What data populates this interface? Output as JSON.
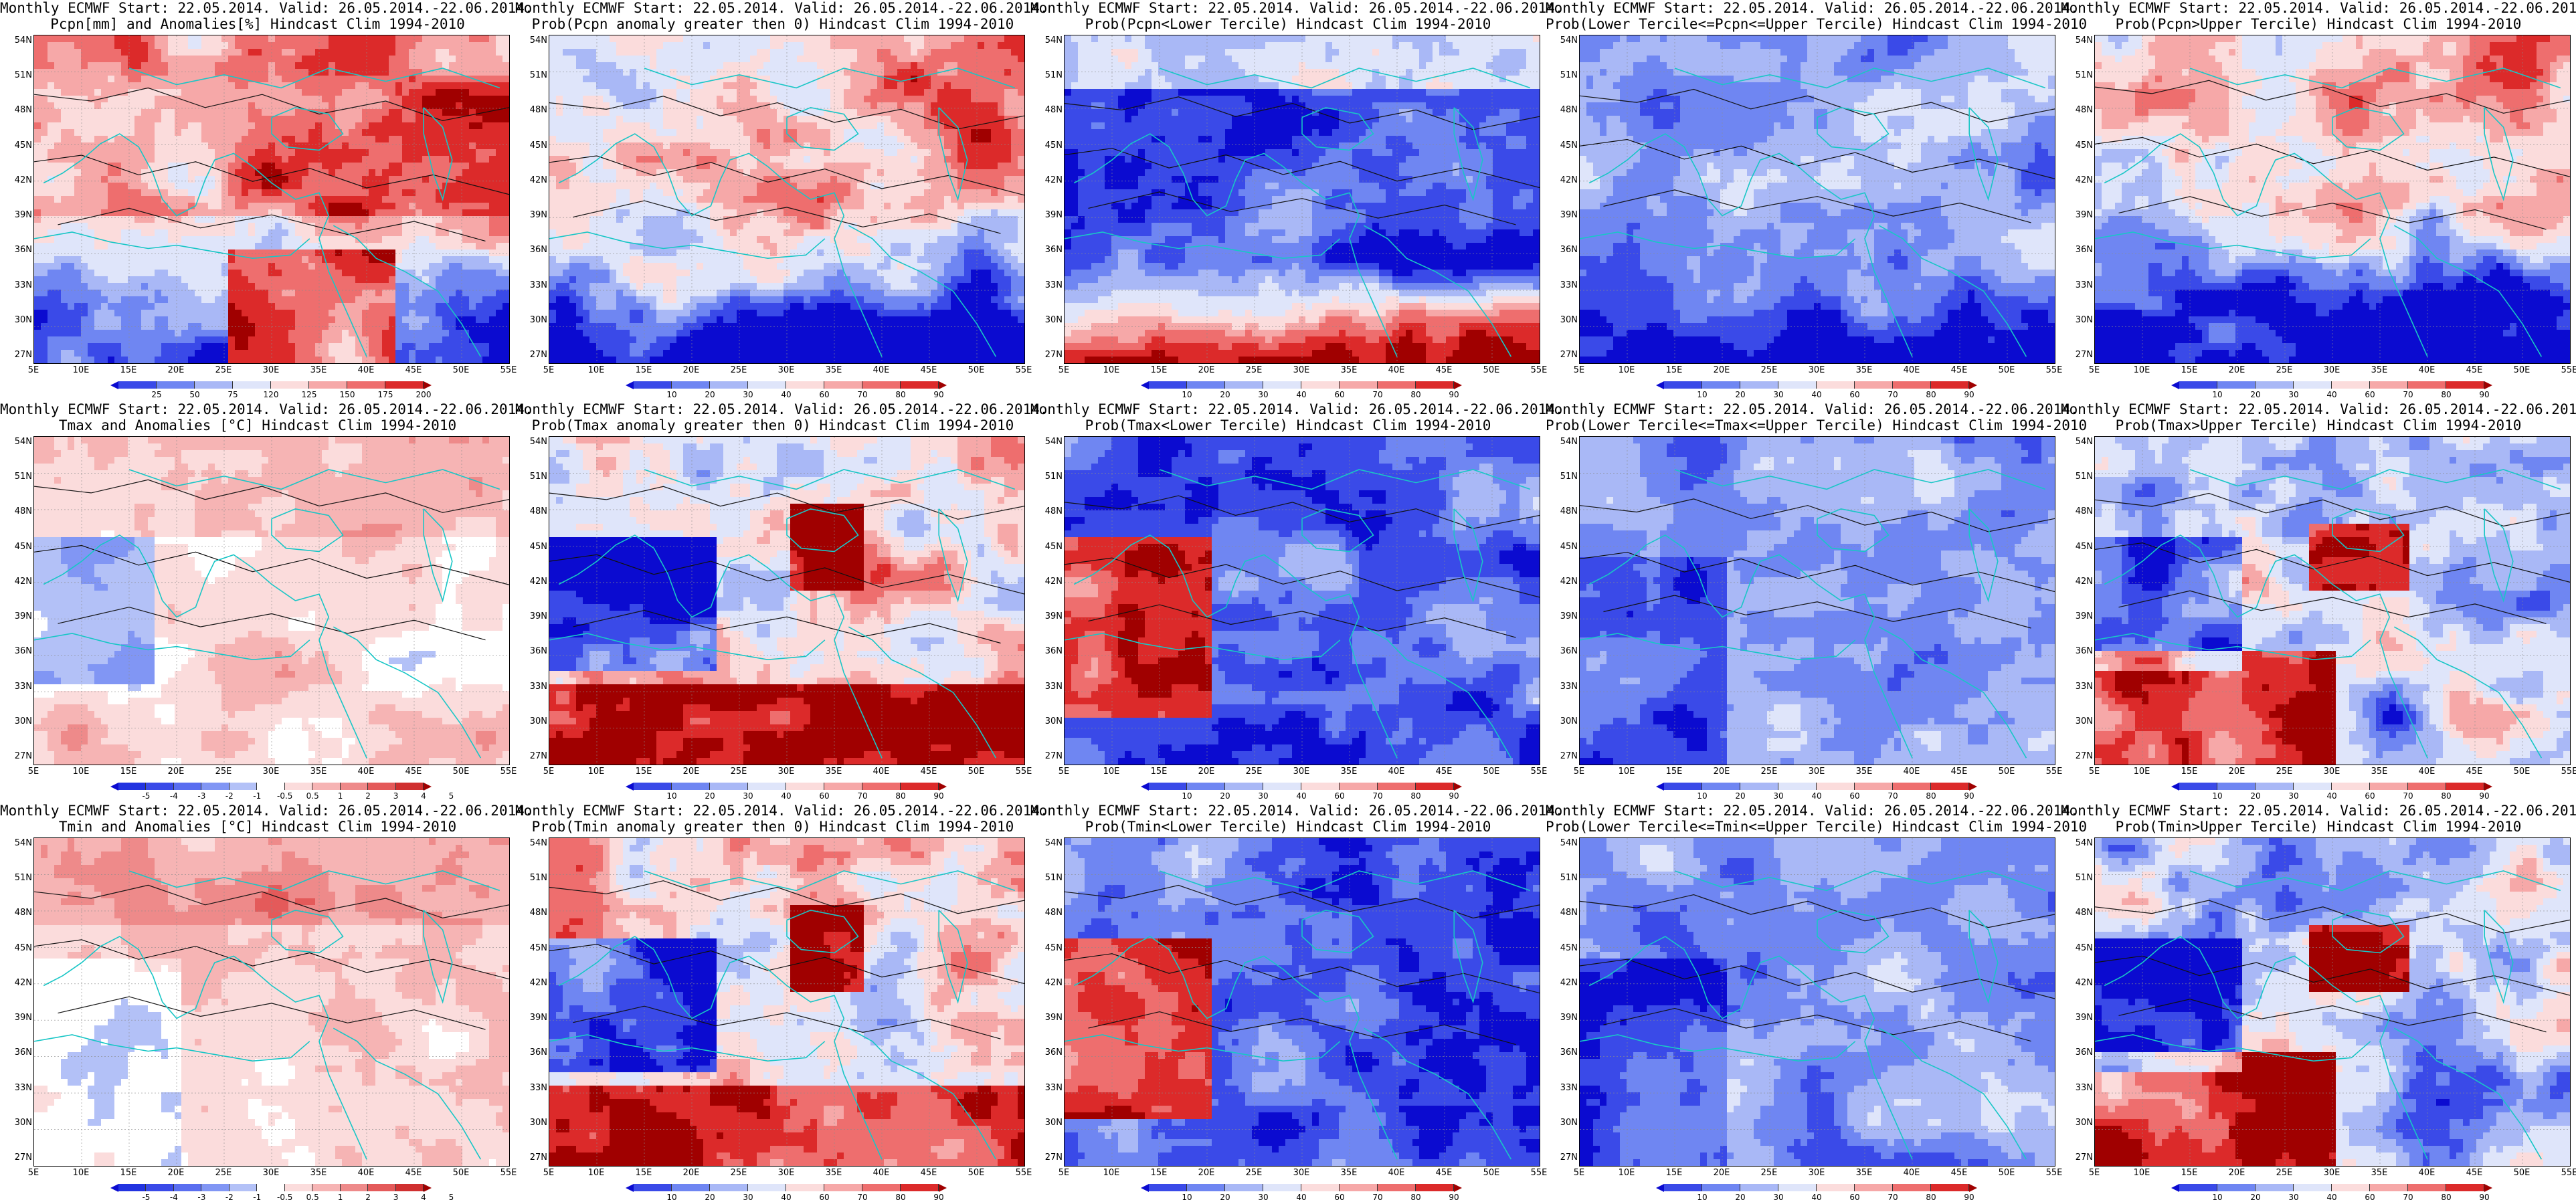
{
  "panels": [
    {
      "title1": "Monthly ECMWF Start: 22.05.2014. Valid: 26.05.2014.-22.06.2014.",
      "title2": "Pcpn[mm] and Anomalies[%] Hindcast Clim 1994-2010",
      "scale": "anom_pcpn",
      "pattern": "pcpn_anom"
    },
    {
      "title1": "Monthly ECMWF Start: 22.05.2014. Valid: 26.05.2014.-22.06.2014.",
      "title2": "Prob(Pcpn anomaly greater then 0) Hindcast Clim 1994-2010",
      "scale": "prob",
      "pattern": "pcpn_pos"
    },
    {
      "title1": "Monthly ECMWF Start: 22.05.2014. Valid: 26.05.2014.-22.06.2014.",
      "title2": "Prob(Pcpn<Lower Tercile) Hindcast Clim 1994-2010",
      "scale": "prob",
      "pattern": "pcpn_low"
    },
    {
      "title1": "Monthly ECMWF Start: 22.05.2014. Valid: 26.05.2014.-22.06.2014.",
      "title2": "Prob(Lower Tercile<=Pcpn<=Upper Tercile) Hindcast Clim 1994-2010",
      "scale": "prob",
      "pattern": "pcpn_mid"
    },
    {
      "title1": "Monthly ECMWF Start: 22.05.2014. Valid: 26.05.2014.-22.06.2014.",
      "title2": "Prob(Pcpn>Upper Tercile) Hindcast Clim 1994-2010",
      "scale": "prob",
      "pattern": "pcpn_up"
    },
    {
      "title1": "Monthly ECMWF Start: 22.05.2014. Valid: 26.05.2014.-22.06.2014.",
      "title2": "Tmax and Anomalies [°C] Hindcast Clim 1994-2010",
      "scale": "anom_temp",
      "pattern": "t_anom"
    },
    {
      "title1": "Monthly ECMWF Start: 22.05.2014. Valid: 26.05.2014.-22.06.2014.",
      "title2": "Prob(Tmax anomaly greater then 0) Hindcast Clim 1994-2010",
      "scale": "prob",
      "pattern": "t_pos"
    },
    {
      "title1": "Monthly ECMWF Start: 22.05.2014. Valid: 26.05.2014.-22.06.2014.",
      "title2": "Prob(Tmax<Lower Tercile) Hindcast Clim 1994-2010",
      "scale": "prob",
      "pattern": "t_low"
    },
    {
      "title1": "Monthly ECMWF Start: 22.05.2014. Valid: 26.05.2014.-22.06.2014.",
      "title2": "Prob(Lower Tercile<=Tmax<=Upper Tercile) Hindcast Clim 1994-2010",
      "scale": "prob",
      "pattern": "t_mid"
    },
    {
      "title1": "Monthly ECMWF Start: 22.05.2014. Valid: 26.05.2014.-22.06.2014.",
      "title2": "Prob(Tmax>Upper Tercile) Hindcast Clim 1994-2010",
      "scale": "prob",
      "pattern": "t_up"
    },
    {
      "title1": "Monthly ECMWF Start: 22.05.2014. Valid: 26.05.2014.-22.06.2014.",
      "title2": "Tmin and Anomalies [°C] Hindcast Clim 1994-2010",
      "scale": "anom_temp",
      "pattern": "t_anom2"
    },
    {
      "title1": "Monthly ECMWF Start: 22.05.2014. Valid: 26.05.2014.-22.06.2014.",
      "title2": "Prob(Tmin anomaly greater then 0) Hindcast Clim 1994-2010",
      "scale": "prob",
      "pattern": "t_pos"
    },
    {
      "title1": "Monthly ECMWF Start: 22.05.2014. Valid: 26.05.2014.-22.06.2014.",
      "title2": "Prob(Tmin<Lower Tercile) Hindcast Clim 1994-2010",
      "scale": "prob",
      "pattern": "t_low"
    },
    {
      "title1": "Monthly ECMWF Start: 22.05.2014. Valid: 26.05.2014.-22.06.2014.",
      "title2": "Prob(Lower Tercile<=Tmin<=Upper Tercile) Hindcast Clim 1994-2010",
      "scale": "prob",
      "pattern": "t_mid"
    },
    {
      "title1": "Monthly ECMWF Start: 22.05.2014. Valid: 26.05.2014.-22.06.2014.",
      "title2": "Prob(Tmin>Upper Tercile) Hindcast Clim 1994-2010",
      "scale": "prob",
      "pattern": "t_up"
    }
  ],
  "lat_labels": [
    "54N",
    "51N",
    "48N",
    "45N",
    "42N",
    "39N",
    "36N",
    "33N",
    "30N",
    "27N"
  ],
  "lon_labels": [
    "5E",
    "10E",
    "15E",
    "20E",
    "25E",
    "30E",
    "35E",
    "40E",
    "45E",
    "50E",
    "55E"
  ],
  "scales": {
    "anom_pcpn": {
      "labels": [
        "25",
        "50",
        "75",
        "120",
        "125",
        "150",
        "175",
        "200"
      ],
      "colors": [
        "#0b0bd0",
        "#3a4ae8",
        "#6f86f2",
        "#a9b8f6",
        "#dfe5fa",
        "#fbdcdc",
        "#f6a8a8",
        "#ee6e6e",
        "#dc2a2a",
        "#a00000"
      ]
    },
    "prob": {
      "labels": [
        "10",
        "20",
        "30",
        "40",
        "60",
        "70",
        "80",
        "90"
      ],
      "colors": [
        "#0b0bd0",
        "#3a4ae8",
        "#6f86f2",
        "#a9b8f6",
        "#dfe5fa",
        "#fbdcdc",
        "#f6a8a8",
        "#ee6e6e",
        "#dc2a2a",
        "#a00000"
      ]
    },
    "anom_temp": {
      "labels": [
        "-5",
        "-4",
        "-3",
        "-2",
        "-1",
        "-0.5",
        "0.5",
        "1",
        "2",
        "3",
        "4",
        "5"
      ],
      "colors": [
        "#0b0bd0",
        "#2233e0",
        "#3a4ae8",
        "#5a6ef0",
        "#8196f4",
        "#b3c1f7",
        "#ffffff",
        "#fbdcdc",
        "#f6b4b4",
        "#ee8a8a",
        "#e45a5a",
        "#d03030",
        "#a00000"
      ]
    }
  },
  "colors": {
    "coast": "#19c6c6",
    "contour": "#111111",
    "grid": "#8c8c8c"
  }
}
